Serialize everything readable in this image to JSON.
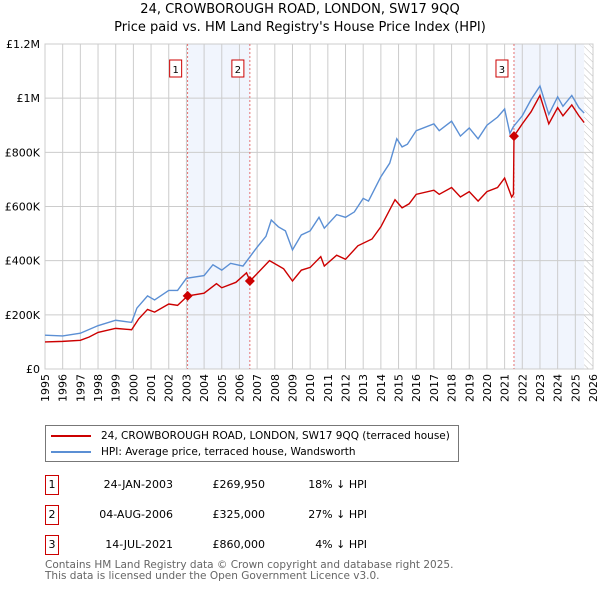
{
  "title": "24, CROWBOROUGH ROAD, LONDON, SW17 9QQ",
  "subtitle": "Price paid vs. HM Land Registry's House Price Index (HPI)",
  "chart_data": {
    "type": "line",
    "title": "24, CROWBOROUGH ROAD, LONDON, SW17 9QQ",
    "subtitle": "Price paid vs. HM Land Registry's House Price Index (HPI)",
    "xlim": [
      1995,
      2026
    ],
    "ylim": [
      0,
      1200000
    ],
    "grid": true,
    "x_ticks": [
      "1995",
      "1996",
      "1997",
      "1998",
      "1999",
      "2000",
      "2001",
      "2002",
      "2003",
      "2004",
      "2005",
      "2006",
      "2007",
      "2008",
      "2009",
      "2010",
      "2011",
      "2012",
      "2013",
      "2014",
      "2015",
      "2016",
      "2017",
      "2018",
      "2019",
      "2020",
      "2021",
      "2022",
      "2023",
      "2024",
      "2025",
      "2026"
    ],
    "y_ticks": [
      {
        "v": 0,
        "label": "£0"
      },
      {
        "v": 200000,
        "label": "£200K"
      },
      {
        "v": 400000,
        "label": "£400K"
      },
      {
        "v": 600000,
        "label": "£600K"
      },
      {
        "v": 800000,
        "label": "£800K"
      },
      {
        "v": 1000000,
        "label": "£1M"
      },
      {
        "v": 1200000,
        "label": "£1.2M"
      }
    ],
    "shaded_ranges": [
      [
        2003.07,
        2006.59
      ],
      [
        2021.53,
        2025.5
      ]
    ],
    "forecast_hatch_from": 2025.5,
    "series": [
      {
        "name": "24, CROWBOROUGH ROAD, LONDON, SW17 9QQ (terraced house)",
        "color": "#cc0000",
        "points": [
          [
            1995,
            100000
          ],
          [
            1996,
            102000
          ],
          [
            1997,
            106000
          ],
          [
            1997.5,
            118000
          ],
          [
            1998,
            135000
          ],
          [
            1999,
            150000
          ],
          [
            1999.9,
            145000
          ],
          [
            2000.3,
            185000
          ],
          [
            2000.8,
            220000
          ],
          [
            2001.2,
            210000
          ],
          [
            2002,
            240000
          ],
          [
            2002.5,
            235000
          ],
          [
            2003.07,
            270000
          ],
          [
            2004,
            280000
          ],
          [
            2004.7,
            315000
          ],
          [
            2005,
            300000
          ],
          [
            2005.8,
            320000
          ],
          [
            2006.4,
            355000
          ],
          [
            2006.6,
            325000
          ],
          [
            2007.7,
            400000
          ],
          [
            2008.5,
            370000
          ],
          [
            2009,
            325000
          ],
          [
            2009.5,
            365000
          ],
          [
            2010,
            375000
          ],
          [
            2010.6,
            415000
          ],
          [
            2010.8,
            380000
          ],
          [
            2011.5,
            420000
          ],
          [
            2012,
            405000
          ],
          [
            2012.7,
            455000
          ],
          [
            2013.5,
            480000
          ],
          [
            2014,
            525000
          ],
          [
            2014.8,
            625000
          ],
          [
            2015.2,
            595000
          ],
          [
            2015.6,
            610000
          ],
          [
            2016,
            645000
          ],
          [
            2017,
            660000
          ],
          [
            2017.3,
            645000
          ],
          [
            2018,
            670000
          ],
          [
            2018.5,
            635000
          ],
          [
            2019,
            655000
          ],
          [
            2019.5,
            620000
          ],
          [
            2020,
            655000
          ],
          [
            2020.6,
            670000
          ],
          [
            2021,
            705000
          ],
          [
            2021.4,
            635000
          ],
          [
            2021.5,
            645000
          ],
          [
            2021.53,
            860000
          ],
          [
            2022,
            905000
          ],
          [
            2022.5,
            950000
          ],
          [
            2023,
            1010000
          ],
          [
            2023.5,
            905000
          ],
          [
            2024,
            965000
          ],
          [
            2024.3,
            935000
          ],
          [
            2024.8,
            975000
          ],
          [
            2025.2,
            935000
          ],
          [
            2025.5,
            910000
          ]
        ]
      },
      {
        "name": "HPI: Average price, terraced house, Wandsworth",
        "color": "#5b8fd4",
        "points": [
          [
            1995,
            125000
          ],
          [
            1996,
            122000
          ],
          [
            1997,
            132000
          ],
          [
            1998,
            160000
          ],
          [
            1999,
            180000
          ],
          [
            1999.9,
            172000
          ],
          [
            2000.2,
            225000
          ],
          [
            2000.8,
            270000
          ],
          [
            2001.2,
            255000
          ],
          [
            2002,
            290000
          ],
          [
            2002.5,
            290000
          ],
          [
            2003,
            335000
          ],
          [
            2004,
            345000
          ],
          [
            2004.5,
            385000
          ],
          [
            2005,
            365000
          ],
          [
            2005.5,
            390000
          ],
          [
            2006.2,
            380000
          ],
          [
            2007,
            450000
          ],
          [
            2007.5,
            490000
          ],
          [
            2007.8,
            550000
          ],
          [
            2008.2,
            525000
          ],
          [
            2008.6,
            510000
          ],
          [
            2009,
            440000
          ],
          [
            2009.5,
            495000
          ],
          [
            2010,
            510000
          ],
          [
            2010.5,
            560000
          ],
          [
            2010.8,
            520000
          ],
          [
            2011.5,
            570000
          ],
          [
            2012,
            560000
          ],
          [
            2012.5,
            580000
          ],
          [
            2013,
            630000
          ],
          [
            2013.3,
            620000
          ],
          [
            2014,
            710000
          ],
          [
            2014.5,
            760000
          ],
          [
            2014.9,
            850000
          ],
          [
            2015.2,
            820000
          ],
          [
            2015.5,
            830000
          ],
          [
            2016,
            880000
          ],
          [
            2017,
            905000
          ],
          [
            2017.3,
            880000
          ],
          [
            2018,
            915000
          ],
          [
            2018.5,
            860000
          ],
          [
            2019,
            890000
          ],
          [
            2019.5,
            850000
          ],
          [
            2020,
            900000
          ],
          [
            2020.6,
            930000
          ],
          [
            2021,
            960000
          ],
          [
            2021.3,
            870000
          ],
          [
            2021.5,
            895000
          ],
          [
            2022,
            935000
          ],
          [
            2022.5,
            995000
          ],
          [
            2023,
            1045000
          ],
          [
            2023.5,
            940000
          ],
          [
            2024,
            1005000
          ],
          [
            2024.3,
            970000
          ],
          [
            2024.8,
            1010000
          ],
          [
            2025.2,
            965000
          ],
          [
            2025.5,
            945000
          ]
        ]
      }
    ],
    "sales": [
      {
        "label": "1",
        "x": 2003.07,
        "price": 269950
      },
      {
        "label": "2",
        "x": 2006.59,
        "price": 325000
      },
      {
        "label": "3",
        "x": 2021.53,
        "price": 860000
      }
    ]
  },
  "legend": {
    "property": "24, CROWBOROUGH ROAD, LONDON, SW17 9QQ (terraced house)",
    "hpi": "HPI: Average price, terraced house, Wandsworth"
  },
  "transactions": [
    {
      "num": "1",
      "date": "24-JAN-2003",
      "price": "£269,950",
      "hpi": "18% ↓ HPI"
    },
    {
      "num": "2",
      "date": "04-AUG-2006",
      "price": "£325,000",
      "hpi": "27% ↓ HPI"
    },
    {
      "num": "3",
      "date": "14-JUL-2021",
      "price": "£860,000",
      "hpi": "4% ↓ HPI"
    }
  ],
  "footer": {
    "line1": "Contains HM Land Registry data © Crown copyright and database right 2025.",
    "line2": "This data is licensed under the Open Government Licence v3.0."
  }
}
